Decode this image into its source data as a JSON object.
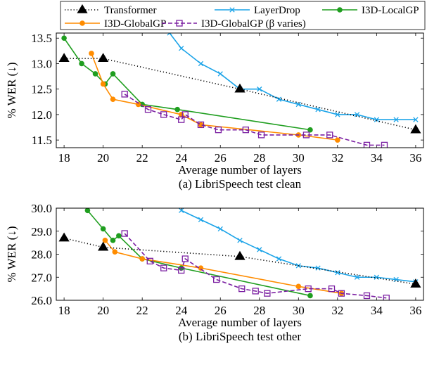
{
  "legend": {
    "entries": [
      {
        "key": "transformer",
        "label": "Transformer"
      },
      {
        "key": "layerdrop",
        "label": "LayerDrop"
      },
      {
        "key": "local",
        "label": "I3D-LocalGP"
      },
      {
        "key": "global",
        "label": "I3D-GlobalGP"
      },
      {
        "key": "beta",
        "label": "I3D-GlobalGP (β varies)"
      }
    ]
  },
  "styles": {
    "transformer": {
      "color": "#000000",
      "marker": "triangle",
      "dash": "dotted"
    },
    "layerdrop": {
      "color": "#1aa3e8",
      "marker": "cross",
      "dash": "solid"
    },
    "local": {
      "color": "#1f9e1f",
      "marker": "circle",
      "dash": "solid"
    },
    "global": {
      "color": "#ff8c00",
      "marker": "circle",
      "dash": "solid"
    },
    "beta": {
      "color": "#7b1fa2",
      "marker": "square",
      "dash": "dashed"
    }
  },
  "chart_data": [
    {
      "type": "line",
      "caption": "(a) LibriSpeech test clean",
      "xlabel": "Average number of layers",
      "ylabel": "% WER (↓)",
      "xlim": [
        17.6,
        36.4
      ],
      "ylim": [
        11.35,
        13.6
      ],
      "xticks": [
        18,
        20,
        22,
        24,
        26,
        28,
        30,
        32,
        34,
        36
      ],
      "yticks": [
        11.5,
        12.0,
        12.5,
        13.0,
        13.5
      ],
      "ytick_labels": [
        "11.5",
        "12.0",
        "12.5",
        "13.0",
        "13.5"
      ],
      "series": [
        {
          "key": "transformer",
          "name": "Transformer",
          "points": [
            [
              18,
              13.1
            ],
            [
              20,
              13.1
            ],
            [
              27,
              12.5
            ],
            [
              36,
              11.7
            ]
          ]
        },
        {
          "key": "layerdrop",
          "name": "LayerDrop",
          "points": [
            [
              23.4,
              13.6
            ],
            [
              24,
              13.3
            ],
            [
              25,
              13.0
            ],
            [
              26,
              12.8
            ],
            [
              27,
              12.5
            ],
            [
              28,
              12.5
            ],
            [
              29,
              12.3
            ],
            [
              30,
              12.2
            ],
            [
              31,
              12.1
            ],
            [
              32,
              12.0
            ],
            [
              33,
              12.0
            ],
            [
              34,
              11.9
            ],
            [
              35,
              11.9
            ],
            [
              36,
              11.9
            ]
          ]
        },
        {
          "key": "local",
          "name": "I3D-LocalGP",
          "points": [
            [
              18,
              13.5
            ],
            [
              18.9,
              13.0
            ],
            [
              19.6,
              12.8
            ],
            [
              20.1,
              12.6
            ],
            [
              20.5,
              12.8
            ],
            [
              22,
              12.2
            ],
            [
              23.8,
              12.1
            ],
            [
              30.6,
              11.7
            ]
          ]
        },
        {
          "key": "global",
          "name": "I3D-GlobalGP",
          "points": [
            [
              19.4,
              13.2
            ],
            [
              20.0,
              12.6
            ],
            [
              20.5,
              12.3
            ],
            [
              21.8,
              12.2
            ],
            [
              24.0,
              12.0
            ],
            [
              25.0,
              11.8
            ],
            [
              30.0,
              11.6
            ],
            [
              32.0,
              11.5
            ]
          ]
        },
        {
          "key": "beta",
          "name": "I3D-GlobalGP (β varies)",
          "points": [
            [
              21.1,
              12.4
            ],
            [
              22.3,
              12.1
            ],
            [
              23.1,
              12.0
            ],
            [
              24.0,
              11.9
            ],
            [
              24.2,
              12.0
            ],
            [
              25.0,
              11.8
            ],
            [
              25.9,
              11.7
            ],
            [
              27.3,
              11.7
            ],
            [
              28.1,
              11.6
            ],
            [
              30.4,
              11.6
            ],
            [
              31.6,
              11.6
            ],
            [
              33.5,
              11.4
            ],
            [
              34.4,
              11.4
            ]
          ]
        }
      ]
    },
    {
      "type": "line",
      "caption": "(b) LibriSpeech test other",
      "xlabel": "Average number of layers",
      "ylabel": "% WER (↓)",
      "xlim": [
        17.6,
        36.4
      ],
      "ylim": [
        26.0,
        30.0
      ],
      "xticks": [
        18,
        20,
        22,
        24,
        26,
        28,
        30,
        32,
        34,
        36
      ],
      "yticks": [
        26.0,
        27.0,
        28.0,
        29.0,
        30.0
      ],
      "ytick_labels": [
        "26.0",
        "27.0",
        "28.0",
        "29.0",
        "30.0"
      ],
      "series": [
        {
          "key": "transformer",
          "name": "Transformer",
          "points": [
            [
              18,
              28.7
            ],
            [
              20,
              28.3
            ],
            [
              27,
              27.9
            ],
            [
              36,
              26.7
            ]
          ]
        },
        {
          "key": "layerdrop",
          "name": "LayerDrop",
          "points": [
            [
              24,
              29.9
            ],
            [
              25,
              29.5
            ],
            [
              26,
              29.1
            ],
            [
              27,
              28.6
            ],
            [
              28,
              28.2
            ],
            [
              29,
              27.8
            ],
            [
              30,
              27.5
            ],
            [
              31,
              27.4
            ],
            [
              32,
              27.2
            ],
            [
              33,
              27.0
            ],
            [
              34,
              27.0
            ],
            [
              35,
              26.9
            ],
            [
              36,
              26.8
            ]
          ]
        },
        {
          "key": "local",
          "name": "I3D-LocalGP",
          "points": [
            [
              19.2,
              29.9
            ],
            [
              20.0,
              29.1
            ],
            [
              20.5,
              28.6
            ],
            [
              20.8,
              28.8
            ],
            [
              22.0,
              27.8
            ],
            [
              24.0,
              27.4
            ],
            [
              30.6,
              26.2
            ]
          ]
        },
        {
          "key": "global",
          "name": "I3D-GlobalGP",
          "points": [
            [
              20.1,
              28.6
            ],
            [
              20.6,
              28.1
            ],
            [
              22.0,
              27.8
            ],
            [
              25.0,
              27.4
            ],
            [
              30.0,
              26.6
            ],
            [
              32.2,
              26.3
            ]
          ]
        },
        {
          "key": "beta",
          "name": "I3D-GlobalGP (β varies)",
          "points": [
            [
              21.1,
              28.9
            ],
            [
              22.4,
              27.7
            ],
            [
              23.1,
              27.4
            ],
            [
              24.0,
              27.3
            ],
            [
              24.2,
              27.8
            ],
            [
              25.8,
              26.9
            ],
            [
              27.1,
              26.5
            ],
            [
              27.8,
              26.4
            ],
            [
              28.4,
              26.3
            ],
            [
              30.5,
              26.5
            ],
            [
              31.7,
              26.5
            ],
            [
              32.2,
              26.3
            ],
            [
              33.5,
              26.2
            ],
            [
              34.5,
              26.1
            ]
          ]
        }
      ]
    }
  ]
}
